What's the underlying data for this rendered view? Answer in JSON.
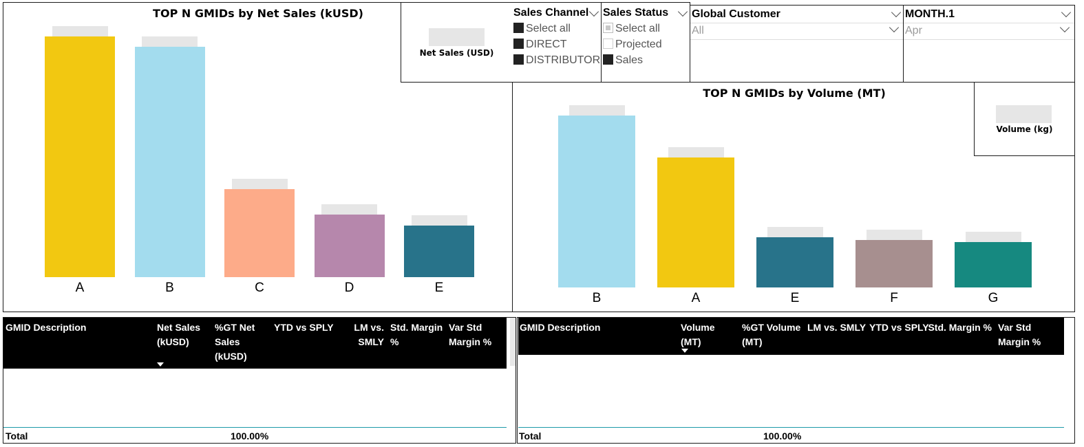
{
  "left_chart": {
    "title": "TOP N GMIDs by Net Sales (kUSD)",
    "card_label": "Net Sales (USD)",
    "chart_data": {
      "type": "bar",
      "title": "TOP N GMIDs by Net Sales (kUSD)",
      "categories": [
        "A",
        "B",
        "C",
        "D",
        "E"
      ],
      "values": [
        100,
        95.7,
        36.6,
        26.1,
        21.4
      ],
      "colors": [
        "#f2c811",
        "#a3dcee",
        "#fdab89",
        "#b687ac",
        "#28738a"
      ],
      "ylim": [
        0,
        100
      ]
    }
  },
  "right_chart": {
    "title": "TOP N GMIDs by Volume (MT)",
    "card_label": "Volume (kg)",
    "chart_data": {
      "type": "bar",
      "title": "TOP N GMIDs by Volume (MT)",
      "categories": [
        "B",
        "A",
        "E",
        "F",
        "G"
      ],
      "values": [
        100,
        75.7,
        29.1,
        27.5,
        26.3
      ],
      "colors": [
        "#a3dcee",
        "#f2c811",
        "#28738a",
        "#a78f8f",
        "#168980"
      ],
      "ylim": [
        0,
        100
      ]
    }
  },
  "slicers": {
    "sales_channel": {
      "title": "Sales Channel",
      "options": [
        {
          "label": "Select all",
          "state": "filled"
        },
        {
          "label": "DIRECT",
          "state": "filled"
        },
        {
          "label": "DISTRIBUTOR",
          "state": "filled"
        }
      ]
    },
    "sales_status": {
      "title": "Sales Status",
      "options": [
        {
          "label": "Select all",
          "state": "partial"
        },
        {
          "label": "Projected",
          "state": "empty"
        },
        {
          "label": "Sales",
          "state": "filled"
        }
      ]
    },
    "global_customer": {
      "title": "Global Customer",
      "value": "All"
    },
    "month": {
      "title": "MONTH.1",
      "value": "Apr"
    }
  },
  "left_table": {
    "headers": [
      "GMID Description",
      "Net Sales (kUSD)",
      "%GT Net Sales (kUSD)",
      "YTD vs SPLY",
      "LM vs. SMLY",
      "Std. Margin %",
      "Var Std Margin %"
    ],
    "total_label": "Total",
    "total_value": "100.00%"
  },
  "right_table": {
    "headers": [
      "GMID Description",
      "Volume (MT)",
      "%GT Volume (MT)",
      "LM vs. SMLY",
      "YTD vs SPLY",
      "Std. Margin %",
      "Var Std Margin %"
    ],
    "total_label": "Total",
    "total_value": "100.00%"
  }
}
